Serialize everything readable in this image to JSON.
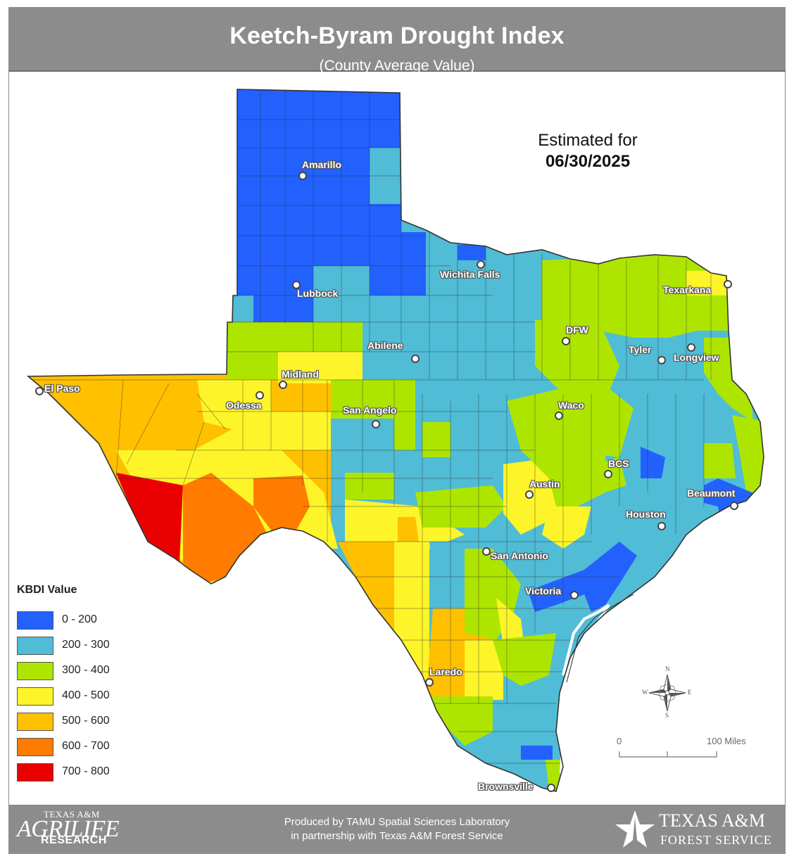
{
  "header": {
    "title": "Keetch-Byram Drought Index",
    "subtitle": "(County Average Value)"
  },
  "estimate": {
    "label": "Estimated for",
    "date": "06/30/2025"
  },
  "legend": {
    "title": "KBDI Value",
    "classes": [
      {
        "range": "0 - 200",
        "color": "#2361ff"
      },
      {
        "range": "200 - 300",
        "color": "#50bcd6"
      },
      {
        "range": "300 - 400",
        "color": "#aee500"
      },
      {
        "range": "400 - 500",
        "color": "#fdf529"
      },
      {
        "range": "500 - 600",
        "color": "#ffc000"
      },
      {
        "range": "600 - 700",
        "color": "#ff7c00"
      },
      {
        "range": "700 - 800",
        "color": "#ea0000"
      }
    ]
  },
  "cities": [
    {
      "name": "Amarillo"
    },
    {
      "name": "Lubbock"
    },
    {
      "name": "Wichita Falls"
    },
    {
      "name": "Texarkana"
    },
    {
      "name": "DFW"
    },
    {
      "name": "Abilene"
    },
    {
      "name": "Tyler"
    },
    {
      "name": "Longview"
    },
    {
      "name": "Midland"
    },
    {
      "name": "El Paso"
    },
    {
      "name": "Odessa"
    },
    {
      "name": "San Angelo"
    },
    {
      "name": "Waco"
    },
    {
      "name": "BCS"
    },
    {
      "name": "Austin"
    },
    {
      "name": "Beaumont"
    },
    {
      "name": "Houston"
    },
    {
      "name": "San Antonio"
    },
    {
      "name": "Victoria"
    },
    {
      "name": "Laredo"
    },
    {
      "name": "Brownsville"
    }
  ],
  "scale": {
    "start": "0",
    "end": "100 Miles"
  },
  "compass": {
    "n": "N",
    "s": "S",
    "e": "E",
    "w": "W"
  },
  "footer": {
    "credit_line1": "Produced by TAMU Spatial Sciences Laboratory",
    "credit_line2": "in partnership with Texas A&M Forest Service",
    "agrilife_top": "TEXAS A&M",
    "agrilife_main": "AGRILIFE",
    "agrilife_sub": "RESEARCH",
    "tfs_main": "TEXAS A&M",
    "tfs_sub": "FOREST SERVICE"
  }
}
